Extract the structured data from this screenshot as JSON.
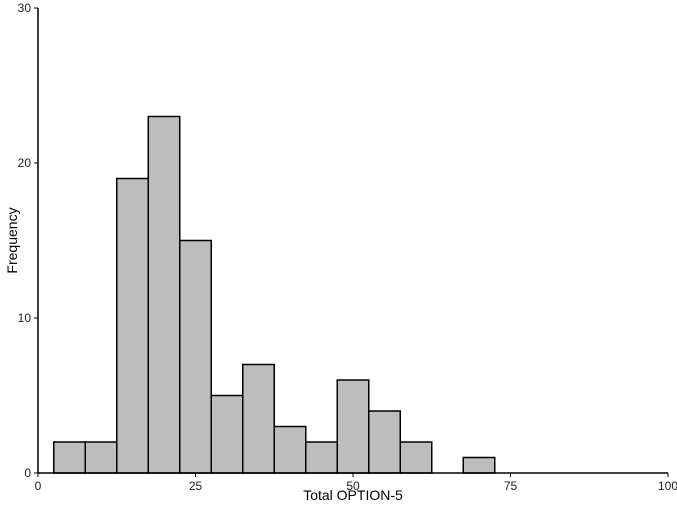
{
  "chart_data": {
    "type": "bar",
    "subtype": "histogram",
    "title": "",
    "xlabel": "Total OPTION-5",
    "ylabel": "Frequency",
    "xlim": [
      0,
      100
    ],
    "ylim": [
      0,
      30
    ],
    "x_ticks": [
      0,
      25,
      50,
      75,
      100
    ],
    "y_ticks": [
      0,
      10,
      20,
      30
    ],
    "bin_width": 5,
    "bins": [
      {
        "start": 2.5,
        "end": 7.5,
        "count": 2
      },
      {
        "start": 7.5,
        "end": 12.5,
        "count": 2
      },
      {
        "start": 12.5,
        "end": 17.5,
        "count": 19
      },
      {
        "start": 17.5,
        "end": 22.5,
        "count": 23
      },
      {
        "start": 22.5,
        "end": 27.5,
        "count": 15
      },
      {
        "start": 27.5,
        "end": 32.5,
        "count": 5
      },
      {
        "start": 32.5,
        "end": 37.5,
        "count": 7
      },
      {
        "start": 37.5,
        "end": 42.5,
        "count": 3
      },
      {
        "start": 42.5,
        "end": 47.5,
        "count": 2
      },
      {
        "start": 47.5,
        "end": 52.5,
        "count": 6
      },
      {
        "start": 52.5,
        "end": 57.5,
        "count": 4
      },
      {
        "start": 57.5,
        "end": 62.5,
        "count": 2
      },
      {
        "start": 62.5,
        "end": 67.5,
        "count": 0
      },
      {
        "start": 67.5,
        "end": 72.5,
        "count": 1
      }
    ],
    "bar_color": "#bdbdbd",
    "bar_edge_color": "#000000",
    "grid": false,
    "legend": "none"
  }
}
